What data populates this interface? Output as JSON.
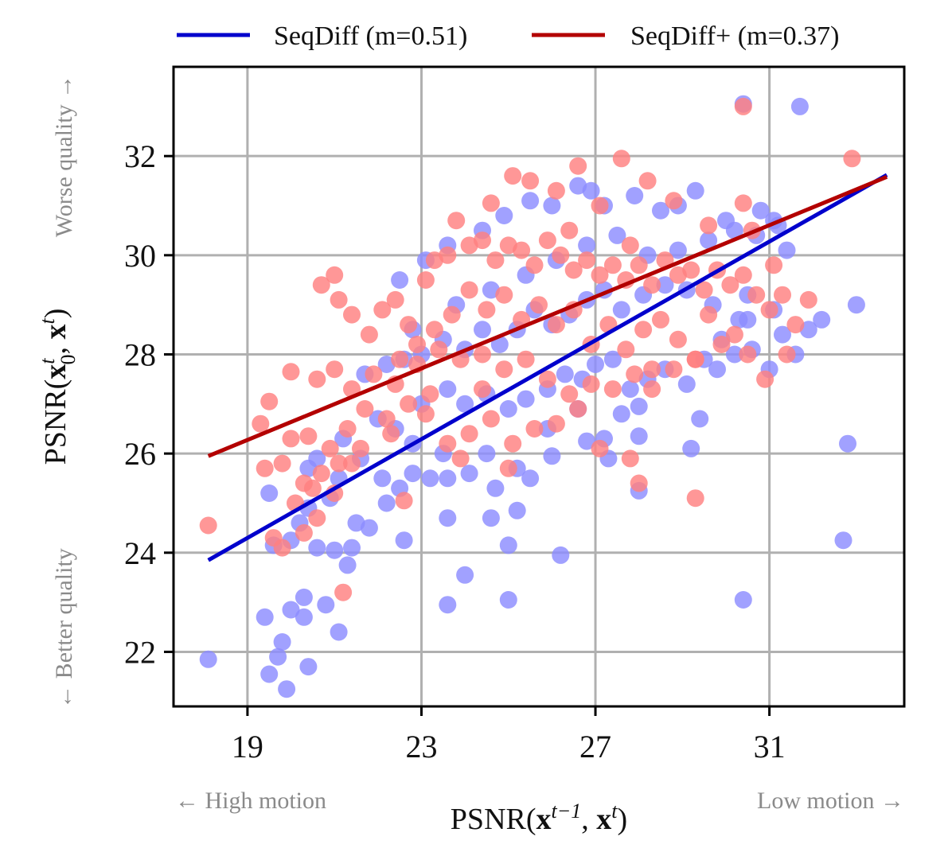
{
  "chart_data": {
    "type": "scatter",
    "xlabel": "PSNR(x^{t−1}, x^t)",
    "ylabel": "PSNR(x_0^t, x^t)",
    "xlim": [
      17.3,
      34.1
    ],
    "ylim": [
      20.9,
      33.8
    ],
    "xticks": [
      19,
      23,
      27,
      31
    ],
    "yticks": [
      22,
      24,
      26,
      28,
      30,
      32
    ],
    "grid": true,
    "legend_position": "top-outside",
    "annotations": {
      "x_left": "← High motion",
      "x_right": "Low motion →",
      "y_top": "Worse quality →",
      "y_bottom": "← Better quality"
    },
    "series": [
      {
        "name": "SeqDiff (m=0.51)",
        "color": "#0000cc",
        "point_color": "#8c8cff",
        "fit": {
          "x": [
            18.1,
            33.7
          ],
          "y": [
            23.85,
            31.62
          ]
        },
        "points": [
          [
            18.1,
            21.85
          ],
          [
            19.5,
            21.55
          ],
          [
            19.9,
            21.25
          ],
          [
            19.7,
            21.9
          ],
          [
            19.8,
            22.2
          ],
          [
            20.4,
            21.7
          ],
          [
            19.4,
            22.7
          ],
          [
            20.0,
            22.85
          ],
          [
            20.3,
            23.1
          ],
          [
            20.3,
            22.7
          ],
          [
            20.8,
            22.95
          ],
          [
            21.1,
            22.4
          ],
          [
            23.6,
            22.95
          ],
          [
            24.0,
            23.55
          ],
          [
            25.0,
            23.05
          ],
          [
            26.2,
            23.95
          ],
          [
            30.4,
            23.05
          ],
          [
            32.7,
            24.25
          ],
          [
            19.6,
            24.15
          ],
          [
            20.0,
            24.25
          ],
          [
            20.6,
            24.1
          ],
          [
            21.0,
            24.05
          ],
          [
            21.4,
            24.1
          ],
          [
            21.3,
            23.75
          ],
          [
            22.6,
            24.25
          ],
          [
            24.6,
            24.7
          ],
          [
            25.0,
            24.15
          ],
          [
            25.2,
            24.85
          ],
          [
            23.6,
            24.7
          ],
          [
            19.5,
            25.2
          ],
          [
            20.2,
            24.6
          ],
          [
            20.4,
            24.9
          ],
          [
            20.9,
            25.1
          ],
          [
            21.5,
            24.6
          ],
          [
            21.8,
            24.5
          ],
          [
            22.2,
            25.0
          ],
          [
            22.5,
            25.3
          ],
          [
            22.8,
            25.6
          ],
          [
            23.2,
            25.5
          ],
          [
            23.6,
            25.5
          ],
          [
            24.1,
            25.6
          ],
          [
            24.7,
            25.3
          ],
          [
            25.2,
            25.7
          ],
          [
            25.5,
            25.5
          ],
          [
            26.0,
            25.95
          ],
          [
            26.8,
            26.25
          ],
          [
            27.2,
            26.3
          ],
          [
            27.3,
            25.9
          ],
          [
            28.0,
            25.25
          ],
          [
            28.0,
            26.35
          ],
          [
            29.2,
            26.1
          ],
          [
            29.4,
            26.7
          ],
          [
            28.0,
            26.95
          ],
          [
            27.6,
            26.8
          ],
          [
            26.6,
            26.9
          ],
          [
            25.9,
            26.5
          ],
          [
            24.5,
            26.0
          ],
          [
            23.5,
            26.0
          ],
          [
            22.8,
            26.2
          ],
          [
            22.1,
            25.5
          ],
          [
            21.6,
            25.9
          ],
          [
            21.1,
            25.5
          ],
          [
            20.6,
            25.9
          ],
          [
            20.4,
            25.7
          ],
          [
            21.2,
            26.3
          ],
          [
            22.0,
            26.7
          ],
          [
            22.4,
            26.5
          ],
          [
            23.0,
            27.0
          ],
          [
            23.6,
            27.3
          ],
          [
            24.0,
            27.0
          ],
          [
            24.5,
            27.2
          ],
          [
            25.0,
            26.9
          ],
          [
            25.4,
            27.1
          ],
          [
            25.9,
            27.3
          ],
          [
            26.3,
            27.6
          ],
          [
            26.7,
            27.5
          ],
          [
            27.0,
            27.8
          ],
          [
            27.4,
            27.9
          ],
          [
            27.8,
            27.3
          ],
          [
            28.2,
            27.5
          ],
          [
            28.6,
            27.7
          ],
          [
            29.1,
            27.4
          ],
          [
            29.5,
            27.9
          ],
          [
            29.9,
            28.3
          ],
          [
            30.2,
            28.0
          ],
          [
            30.6,
            28.1
          ],
          [
            31.0,
            27.7
          ],
          [
            31.3,
            28.4
          ],
          [
            31.6,
            28.0
          ],
          [
            31.9,
            28.5
          ],
          [
            32.2,
            28.7
          ],
          [
            33.0,
            29.0
          ],
          [
            31.1,
            28.9
          ],
          [
            30.5,
            28.7
          ],
          [
            29.7,
            29.0
          ],
          [
            29.1,
            29.3
          ],
          [
            28.6,
            29.4
          ],
          [
            28.1,
            29.2
          ],
          [
            27.6,
            28.9
          ],
          [
            27.2,
            29.3
          ],
          [
            26.8,
            29.1
          ],
          [
            26.4,
            28.8
          ],
          [
            26.0,
            28.6
          ],
          [
            25.6,
            28.9
          ],
          [
            25.2,
            28.5
          ],
          [
            24.8,
            28.2
          ],
          [
            24.4,
            28.5
          ],
          [
            24.0,
            28.1
          ],
          [
            23.5,
            28.3
          ],
          [
            23.0,
            28.0
          ],
          [
            22.6,
            27.9
          ],
          [
            22.2,
            27.8
          ],
          [
            21.7,
            27.6
          ],
          [
            22.8,
            28.5
          ],
          [
            23.8,
            29.0
          ],
          [
            24.6,
            29.3
          ],
          [
            25.4,
            29.6
          ],
          [
            26.1,
            29.9
          ],
          [
            26.8,
            30.2
          ],
          [
            27.5,
            30.4
          ],
          [
            28.2,
            30.0
          ],
          [
            28.9,
            30.1
          ],
          [
            29.6,
            30.3
          ],
          [
            30.2,
            30.5
          ],
          [
            30.7,
            30.4
          ],
          [
            31.1,
            30.7
          ],
          [
            31.4,
            30.1
          ],
          [
            31.2,
            30.6
          ],
          [
            30.0,
            30.7
          ],
          [
            29.3,
            31.3
          ],
          [
            28.5,
            30.9
          ],
          [
            27.9,
            31.2
          ],
          [
            27.2,
            31.0
          ],
          [
            26.6,
            31.4
          ],
          [
            26.0,
            31.0
          ],
          [
            25.5,
            31.1
          ],
          [
            24.9,
            30.8
          ],
          [
            24.4,
            30.5
          ],
          [
            23.6,
            30.2
          ],
          [
            23.1,
            29.9
          ],
          [
            22.5,
            29.5
          ],
          [
            30.8,
            30.9
          ],
          [
            28.9,
            31.0
          ],
          [
            26.9,
            31.3
          ],
          [
            31.7,
            33.0
          ],
          [
            30.4,
            33.05
          ],
          [
            32.8,
            26.2
          ],
          [
            30.5,
            29.2
          ],
          [
            30.3,
            28.7
          ],
          [
            29.8,
            27.7
          ]
        ]
      },
      {
        "name": "SeqDiff+ (m=0.37)",
        "color": "#b30000",
        "point_color": "#ff8080",
        "fit": {
          "x": [
            18.1,
            33.7
          ],
          "y": [
            25.95,
            31.58
          ]
        },
        "points": [
          [
            18.1,
            24.55
          ],
          [
            19.6,
            24.3
          ],
          [
            19.8,
            24.1
          ],
          [
            20.3,
            24.4
          ],
          [
            20.6,
            24.7
          ],
          [
            21.2,
            23.2
          ],
          [
            19.4,
            25.7
          ],
          [
            19.8,
            25.8
          ],
          [
            20.1,
            25.0
          ],
          [
            20.3,
            25.4
          ],
          [
            20.7,
            25.6
          ],
          [
            21.0,
            25.2
          ],
          [
            21.4,
            25.8
          ],
          [
            22.6,
            25.05
          ],
          [
            19.3,
            26.6
          ],
          [
            19.5,
            27.05
          ],
          [
            20.0,
            26.3
          ],
          [
            20.4,
            26.35
          ],
          [
            20.9,
            26.1
          ],
          [
            21.3,
            26.5
          ],
          [
            21.7,
            26.9
          ],
          [
            22.2,
            26.7
          ],
          [
            22.7,
            27.0
          ],
          [
            23.2,
            27.2
          ],
          [
            20.0,
            27.65
          ],
          [
            20.6,
            27.5
          ],
          [
            21.0,
            27.7
          ],
          [
            21.4,
            27.3
          ],
          [
            21.9,
            27.6
          ],
          [
            22.4,
            27.4
          ],
          [
            22.9,
            27.8
          ],
          [
            23.4,
            28.1
          ],
          [
            23.9,
            27.9
          ],
          [
            24.4,
            28.0
          ],
          [
            24.9,
            27.7
          ],
          [
            25.4,
            27.9
          ],
          [
            25.9,
            27.5
          ],
          [
            26.4,
            27.2
          ],
          [
            26.9,
            27.4
          ],
          [
            27.4,
            27.3
          ],
          [
            27.9,
            27.6
          ],
          [
            28.3,
            27.7
          ],
          [
            20.7,
            29.4
          ],
          [
            21.0,
            29.6
          ],
          [
            21.1,
            29.1
          ],
          [
            21.4,
            28.8
          ],
          [
            21.8,
            28.4
          ],
          [
            22.1,
            28.9
          ],
          [
            22.4,
            29.1
          ],
          [
            22.7,
            28.6
          ],
          [
            23.1,
            29.5
          ],
          [
            23.3,
            29.9
          ],
          [
            23.6,
            30.0
          ],
          [
            23.8,
            30.7
          ],
          [
            24.1,
            30.2
          ],
          [
            24.4,
            30.3
          ],
          [
            24.7,
            29.9
          ],
          [
            25.0,
            30.2
          ],
          [
            25.3,
            30.1
          ],
          [
            25.6,
            29.8
          ],
          [
            25.9,
            30.3
          ],
          [
            26.2,
            30.0
          ],
          [
            26.5,
            29.7
          ],
          [
            26.8,
            29.9
          ],
          [
            27.1,
            29.6
          ],
          [
            27.4,
            29.8
          ],
          [
            27.7,
            29.5
          ],
          [
            28.0,
            29.8
          ],
          [
            28.3,
            29.4
          ],
          [
            28.6,
            29.9
          ],
          [
            28.9,
            29.6
          ],
          [
            29.2,
            29.7
          ],
          [
            29.5,
            29.3
          ],
          [
            29.8,
            29.7
          ],
          [
            30.1,
            29.4
          ],
          [
            30.4,
            29.6
          ],
          [
            30.7,
            29.2
          ],
          [
            31.0,
            28.9
          ],
          [
            31.3,
            29.2
          ],
          [
            31.9,
            29.1
          ],
          [
            31.6,
            28.6
          ],
          [
            31.4,
            28.0
          ],
          [
            30.9,
            27.5
          ],
          [
            30.5,
            28.0
          ],
          [
            30.2,
            28.4
          ],
          [
            29.9,
            28.2
          ],
          [
            29.6,
            28.8
          ],
          [
            29.3,
            27.9
          ],
          [
            28.9,
            28.3
          ],
          [
            28.5,
            28.7
          ],
          [
            28.1,
            28.5
          ],
          [
            27.7,
            28.1
          ],
          [
            27.3,
            28.6
          ],
          [
            26.9,
            28.2
          ],
          [
            26.5,
            28.9
          ],
          [
            26.1,
            28.6
          ],
          [
            25.7,
            29.0
          ],
          [
            25.3,
            28.7
          ],
          [
            24.9,
            29.2
          ],
          [
            24.5,
            28.9
          ],
          [
            24.1,
            29.3
          ],
          [
            23.7,
            28.8
          ],
          [
            23.3,
            28.5
          ],
          [
            22.9,
            28.2
          ],
          [
            22.5,
            27.9
          ],
          [
            24.6,
            31.05
          ],
          [
            25.1,
            31.6
          ],
          [
            25.5,
            31.5
          ],
          [
            26.1,
            31.3
          ],
          [
            26.6,
            31.8
          ],
          [
            27.1,
            31.0
          ],
          [
            27.6,
            31.95
          ],
          [
            28.2,
            31.5
          ],
          [
            28.8,
            31.1
          ],
          [
            29.6,
            30.6
          ],
          [
            30.4,
            31.05
          ],
          [
            32.9,
            31.95
          ],
          [
            30.4,
            33.0
          ],
          [
            29.3,
            25.1
          ],
          [
            28.0,
            25.4
          ],
          [
            27.8,
            25.9
          ],
          [
            27.1,
            26.1
          ],
          [
            26.6,
            26.9
          ],
          [
            26.1,
            26.6
          ],
          [
            25.6,
            26.5
          ],
          [
            25.1,
            26.2
          ],
          [
            24.6,
            26.7
          ],
          [
            24.1,
            26.4
          ],
          [
            23.6,
            26.2
          ],
          [
            23.9,
            25.9
          ],
          [
            25.0,
            25.7
          ],
          [
            28.3,
            27.3
          ],
          [
            28.8,
            27.7
          ],
          [
            29.3,
            27.9
          ],
          [
            31.1,
            29.8
          ],
          [
            30.6,
            30.5
          ],
          [
            24.4,
            27.3
          ],
          [
            23.1,
            26.8
          ],
          [
            22.3,
            26.4
          ],
          [
            21.6,
            26.1
          ],
          [
            21.1,
            25.8
          ],
          [
            20.5,
            25.3
          ],
          [
            26.4,
            30.5
          ],
          [
            27.8,
            30.2
          ]
        ]
      }
    ]
  }
}
